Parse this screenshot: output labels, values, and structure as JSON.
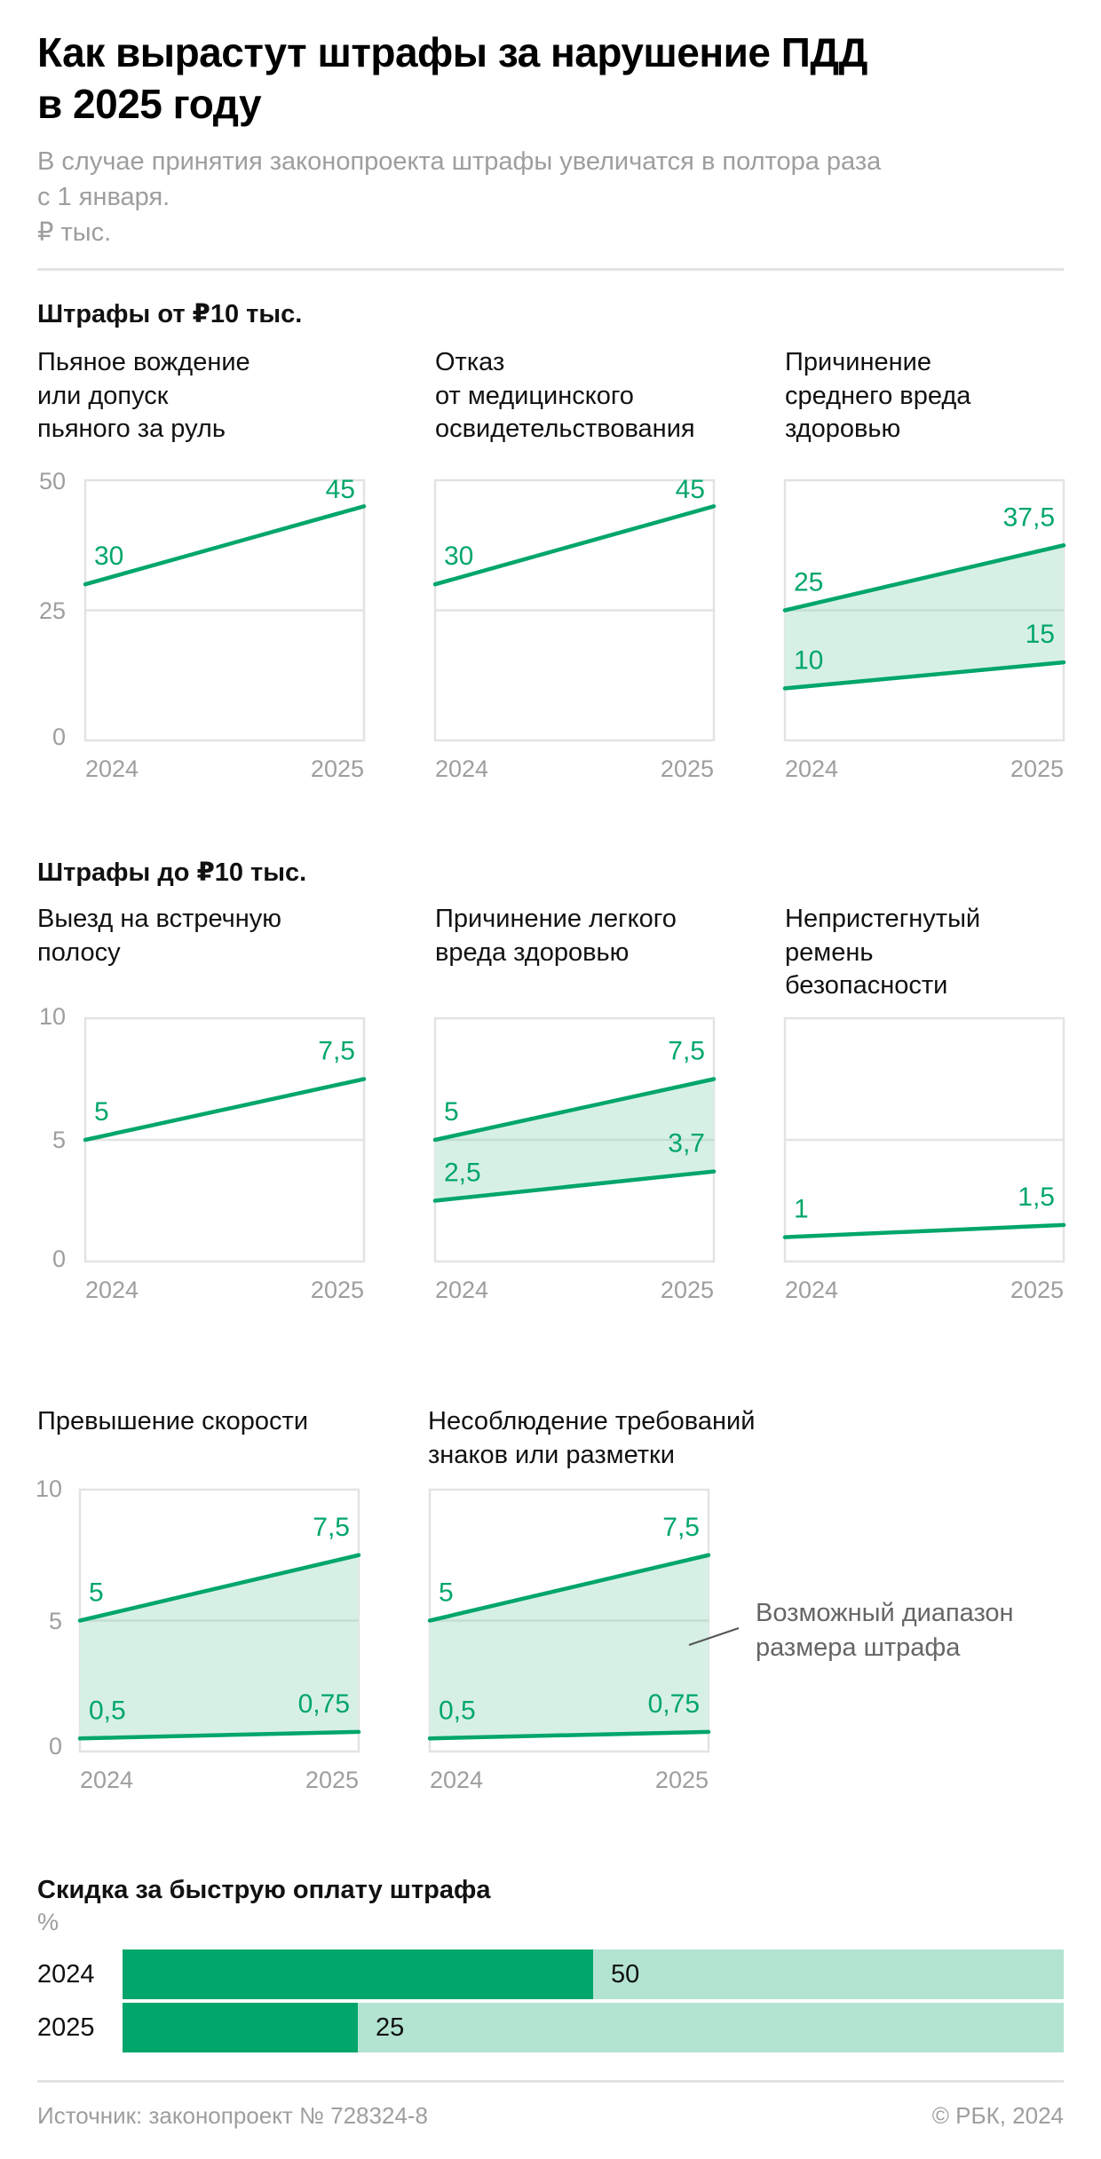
{
  "header": {
    "title_lines": [
      "Как вырастут штрафы за нарушение ПДД",
      "в 2025 году"
    ],
    "subtitle_lines": [
      "В случае принятия законопроекта штрафы увеличатся в полтора раза",
      "с 1 января.",
      "₽ тыс."
    ]
  },
  "colors": {
    "line": "#00a66a",
    "area": "#d7f0e5",
    "frame": "#e3e3e3",
    "grid": "#e3e3e3",
    "bar_dark": "#00a66a",
    "bar_light": "#b3e4d2"
  },
  "sections": [
    {
      "heading": "Штрафы от ₽10 тыс.",
      "y_ticks": [
        "50",
        "25",
        "0"
      ]
    },
    {
      "heading": "Штрафы до ₽10 тыс.",
      "y_ticks": [
        "10",
        "5",
        "0"
      ]
    },
    {
      "heading": "",
      "y_ticks": [
        "10",
        "5",
        "0"
      ]
    }
  ],
  "annotation": {
    "lines": [
      "Возможный диапазон",
      "размера штрафа"
    ]
  },
  "chart_data": [
    {
      "type": "area",
      "section": 0,
      "title_lines": [
        "Пьяное вождение",
        "или допуск",
        "пьяного за руль"
      ],
      "x": [
        "2024",
        "2025"
      ],
      "ylim": [
        0,
        50
      ],
      "yticks": [
        0,
        25,
        50
      ],
      "series": [
        {
          "name": "max",
          "values": [
            30,
            45
          ],
          "labels": [
            "30",
            "45"
          ]
        }
      ]
    },
    {
      "type": "area",
      "section": 0,
      "title_lines": [
        "Отказ",
        "от медицинского",
        "освидетельствования"
      ],
      "x": [
        "2024",
        "2025"
      ],
      "ylim": [
        0,
        50
      ],
      "yticks": [
        0,
        25,
        50
      ],
      "series": [
        {
          "name": "max",
          "values": [
            30,
            45
          ],
          "labels": [
            "30",
            "45"
          ]
        }
      ]
    },
    {
      "type": "area",
      "section": 0,
      "title_lines": [
        "Причинение",
        "среднего вреда",
        "здоровью"
      ],
      "x": [
        "2024",
        "2025"
      ],
      "ylim": [
        0,
        50
      ],
      "yticks": [
        0,
        25,
        50
      ],
      "series": [
        {
          "name": "max",
          "values": [
            25,
            37.5
          ],
          "labels": [
            "25",
            "37,5"
          ]
        },
        {
          "name": "min",
          "values": [
            10,
            15
          ],
          "labels": [
            "10",
            "15"
          ]
        }
      ]
    },
    {
      "type": "area",
      "section": 1,
      "title_lines": [
        "Выезд на встречную",
        "полосу"
      ],
      "x": [
        "2024",
        "2025"
      ],
      "ylim": [
        0,
        10
      ],
      "yticks": [
        0,
        5,
        10
      ],
      "series": [
        {
          "name": "max",
          "values": [
            5,
            7.5
          ],
          "labels": [
            "5",
            "7,5"
          ]
        }
      ]
    },
    {
      "type": "area",
      "section": 1,
      "title_lines": [
        "Причинение легкого",
        "вреда здоровью"
      ],
      "x": [
        "2024",
        "2025"
      ],
      "ylim": [
        0,
        10
      ],
      "yticks": [
        0,
        5,
        10
      ],
      "series": [
        {
          "name": "max",
          "values": [
            5,
            7.5
          ],
          "labels": [
            "5",
            "7,5"
          ]
        },
        {
          "name": "min",
          "values": [
            2.5,
            3.7
          ],
          "labels": [
            "2,5",
            "3,7"
          ]
        }
      ]
    },
    {
      "type": "area",
      "section": 1,
      "title_lines": [
        "Непристегнутый",
        "ремень",
        "безопасности"
      ],
      "x": [
        "2024",
        "2025"
      ],
      "ylim": [
        0,
        10
      ],
      "yticks": [
        0,
        5,
        10
      ],
      "series": [
        {
          "name": "max",
          "values": [
            1,
            1.5
          ],
          "labels": [
            "1",
            "1,5"
          ]
        }
      ]
    },
    {
      "type": "area",
      "section": 2,
      "title_lines": [
        "Превышение скорости"
      ],
      "x": [
        "2024",
        "2025"
      ],
      "ylim": [
        0,
        10
      ],
      "yticks": [
        0,
        5,
        10
      ],
      "series": [
        {
          "name": "max",
          "values": [
            5,
            7.5
          ],
          "labels": [
            "5",
            "7,5"
          ]
        },
        {
          "name": "min",
          "values": [
            0.5,
            0.75
          ],
          "labels": [
            "0,5",
            "0,75"
          ]
        }
      ]
    },
    {
      "type": "area",
      "section": 2,
      "title_lines": [
        "Несоблюдение требований",
        "знаков или разметки"
      ],
      "x": [
        "2024",
        "2025"
      ],
      "ylim": [
        0,
        10
      ],
      "yticks": [
        0,
        5,
        10
      ],
      "series": [
        {
          "name": "max",
          "values": [
            5,
            7.5
          ],
          "labels": [
            "5",
            "7,5"
          ]
        },
        {
          "name": "min",
          "values": [
            0.5,
            0.75
          ],
          "labels": [
            "0,5",
            "0,75"
          ]
        }
      ]
    },
    {
      "type": "bar",
      "title": "Скидка за быструю оплату штрафа",
      "unit": "%",
      "categories": [
        "2024",
        "2025"
      ],
      "values": [
        50,
        25
      ],
      "labels": [
        "50",
        "25"
      ],
      "xlim": [
        0,
        100
      ]
    }
  ],
  "footer": {
    "source": "Источник: законопроект № 728324-8",
    "copyright": "© РБК, 2024"
  }
}
